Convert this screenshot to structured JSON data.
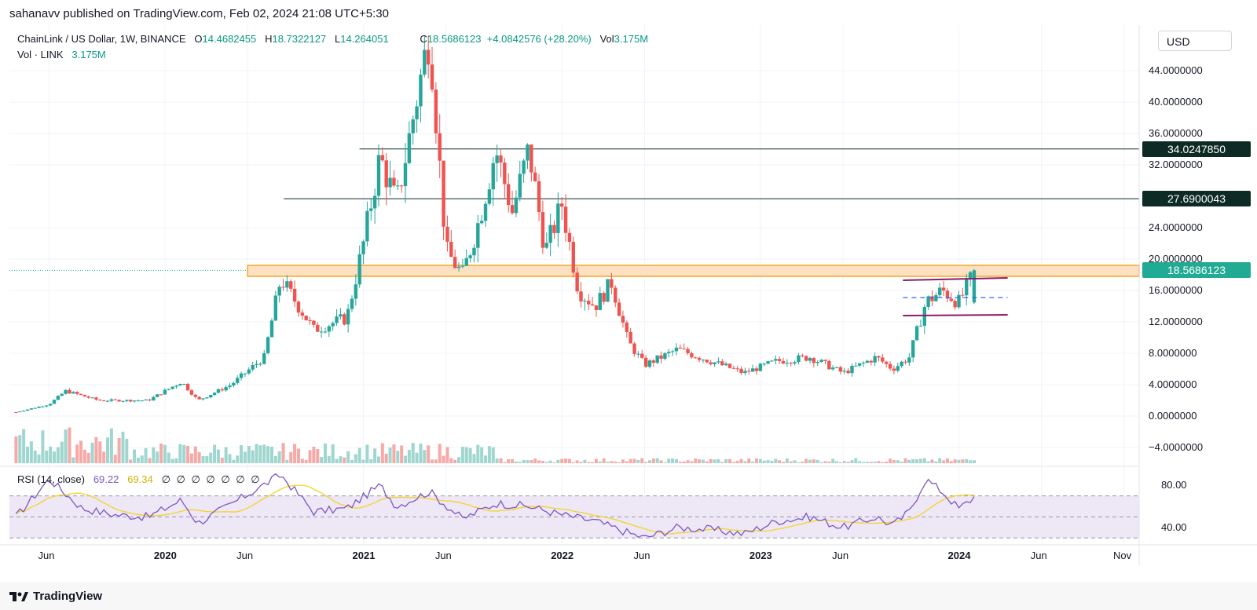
{
  "header": {
    "publish_text": "sahanavv published on TradingView.com, Feb 02, 2024 21:08 UTC+5:30"
  },
  "legend": {
    "symbol": "ChainLink / US Dollar, 1W, BINANCE",
    "o_label": "O",
    "o_value": "14.4682455",
    "h_label": "H",
    "h_value": "18.7322127",
    "l_label": "L",
    "l_value": "14.264051",
    "c_label": "C",
    "c_value": "18.5686123",
    "change": "+4.0842576 (+28.20%)",
    "vol_label": "Vol",
    "vol_value": "3.175M",
    "vol_line_label": "Vol · LINK",
    "vol_line_value": "3.175M"
  },
  "currency_button": "USD",
  "price_axis": {
    "labels": [
      "44.0000000",
      "40.0000000",
      "36.0000000",
      "32.0000000",
      "24.0000000",
      "20.0000000",
      "16.0000000",
      "12.0000000",
      "8.0000000",
      "4.0000000",
      "0.0000000",
      "−4.0000000"
    ],
    "tags": [
      {
        "text": "34.0247850",
        "color": "#0d2b24"
      },
      {
        "text": "27.6900043",
        "color": "#0d2b24"
      },
      {
        "text": "18.5686123",
        "color": "#22ab94"
      }
    ]
  },
  "rsi": {
    "title": "RSI (14, close)",
    "value1": "69.22",
    "value2": "69.34",
    "na_marks": "∅ ∅ ∅ ∅ ∅ ∅ ∅",
    "labels": [
      "80.00",
      "40.00"
    ]
  },
  "time_axis": {
    "labels": [
      "Jun",
      "2020",
      "Jun",
      "2021",
      "Jun",
      "2022",
      "Jun",
      "2023",
      "Jun",
      "2024",
      "Jun",
      "Nov"
    ]
  },
  "footer": {
    "brand": "TradingView"
  },
  "colors": {
    "up": "#26a69a",
    "down": "#ef5350",
    "vol_up": "#9fd6cf",
    "vol_down": "#f7a9a7",
    "zone_fill": "#fbe0c2",
    "zone_border": "#f5a623",
    "channel": "#8b1c6c",
    "midline": "#2962ff",
    "rsi_line": "#7e57c2",
    "rsi_ma": "#f5d327",
    "rsi_band": "#ede7f6",
    "level_line": "#0d2b24"
  },
  "chart_data": {
    "type": "candlestick",
    "symbol": "LINKUSD",
    "timeframe": "1W",
    "ylim": [
      -6,
      50
    ],
    "x_range": [
      "2019-04",
      "2024-11"
    ],
    "horizontal_levels": [
      34.024785,
      27.6900043
    ],
    "resistance_zone": [
      17.8,
      19.2
    ],
    "last_price": 18.5686123,
    "channel": {
      "top": 17.3,
      "bottom": 12.8,
      "mid": 15.1,
      "start": "2023-10",
      "end": "2024-03"
    },
    "price_anchors": [
      {
        "t": "2019-04",
        "p": 0.5
      },
      {
        "t": "2019-06",
        "p": 1.5
      },
      {
        "t": "2019-07",
        "p": 3.2
      },
      {
        "t": "2019-09",
        "p": 2.0
      },
      {
        "t": "2019-12",
        "p": 2.0
      },
      {
        "t": "2020-02",
        "p": 4.4
      },
      {
        "t": "2020-03",
        "p": 2.0
      },
      {
        "t": "2020-05",
        "p": 4.0
      },
      {
        "t": "2020-07",
        "p": 7.5
      },
      {
        "t": "2020-08",
        "p": 17.5
      },
      {
        "t": "2020-10",
        "p": 11.0
      },
      {
        "t": "2020-12",
        "p": 12.5
      },
      {
        "t": "2021-01",
        "p": 22.0
      },
      {
        "t": "2021-02",
        "p": 33.0
      },
      {
        "t": "2021-03",
        "p": 27.0
      },
      {
        "t": "2021-04",
        "p": 38.0
      },
      {
        "t": "2021-05",
        "p": 49.0
      },
      {
        "t": "2021-06",
        "p": 21.0
      },
      {
        "t": "2021-07",
        "p": 18.0
      },
      {
        "t": "2021-08",
        "p": 25.0
      },
      {
        "t": "2021-09",
        "p": 34.0
      },
      {
        "t": "2021-10",
        "p": 26.0
      },
      {
        "t": "2021-11",
        "p": 34.0
      },
      {
        "t": "2021-12",
        "p": 21.0
      },
      {
        "t": "2022-01",
        "p": 27.0
      },
      {
        "t": "2022-02",
        "p": 16.0
      },
      {
        "t": "2022-03",
        "p": 14.0
      },
      {
        "t": "2022-04",
        "p": 17.0
      },
      {
        "t": "2022-05",
        "p": 9.5
      },
      {
        "t": "2022-06",
        "p": 6.5
      },
      {
        "t": "2022-08",
        "p": 8.5
      },
      {
        "t": "2022-10",
        "p": 7.0
      },
      {
        "t": "2022-12",
        "p": 5.5
      },
      {
        "t": "2023-02",
        "p": 7.0
      },
      {
        "t": "2023-04",
        "p": 7.5
      },
      {
        "t": "2023-06",
        "p": 5.5
      },
      {
        "t": "2023-08",
        "p": 7.5
      },
      {
        "t": "2023-09",
        "p": 6.0
      },
      {
        "t": "2023-10",
        "p": 7.5
      },
      {
        "t": "2023-11",
        "p": 14.5
      },
      {
        "t": "2023-12",
        "p": 16.0
      },
      {
        "t": "2024-01",
        "p": 14.5
      },
      {
        "t": "2024-02",
        "p": 18.57
      }
    ],
    "rsi_anchors": [
      {
        "t": "2019-04",
        "v": 50
      },
      {
        "t": "2019-06",
        "v": 86
      },
      {
        "t": "2019-08",
        "v": 58
      },
      {
        "t": "2019-10",
        "v": 52
      },
      {
        "t": "2019-12",
        "v": 50
      },
      {
        "t": "2020-02",
        "v": 66
      },
      {
        "t": "2020-03",
        "v": 44
      },
      {
        "t": "2020-05",
        "v": 62
      },
      {
        "t": "2020-08",
        "v": 90
      },
      {
        "t": "2020-10",
        "v": 55
      },
      {
        "t": "2020-12",
        "v": 58
      },
      {
        "t": "2021-02",
        "v": 80
      },
      {
        "t": "2021-03",
        "v": 60
      },
      {
        "t": "2021-05",
        "v": 74
      },
      {
        "t": "2021-07",
        "v": 48
      },
      {
        "t": "2021-09",
        "v": 63
      },
      {
        "t": "2021-11",
        "v": 60
      },
      {
        "t": "2022-01",
        "v": 52
      },
      {
        "t": "2022-03",
        "v": 46
      },
      {
        "t": "2022-05",
        "v": 35
      },
      {
        "t": "2022-06",
        "v": 30
      },
      {
        "t": "2022-08",
        "v": 40
      },
      {
        "t": "2022-10",
        "v": 38
      },
      {
        "t": "2022-12",
        "v": 34
      },
      {
        "t": "2023-02",
        "v": 46
      },
      {
        "t": "2023-04",
        "v": 50
      },
      {
        "t": "2023-06",
        "v": 40
      },
      {
        "t": "2023-08",
        "v": 50
      },
      {
        "t": "2023-09",
        "v": 42
      },
      {
        "t": "2023-10",
        "v": 55
      },
      {
        "t": "2023-11",
        "v": 86
      },
      {
        "t": "2023-12",
        "v": 74
      },
      {
        "t": "2024-01",
        "v": 58
      },
      {
        "t": "2024-02",
        "v": 69.22
      }
    ],
    "rsi_levels": [
      70,
      50,
      30
    ],
    "rsi_ylim": [
      25,
      95
    ]
  }
}
